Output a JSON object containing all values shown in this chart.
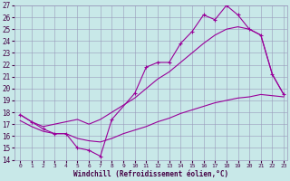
{
  "xlabel": "Windchill (Refroidissement éolien,°C)",
  "bg_color": "#c8e8e8",
  "grid_color": "#9999bb",
  "line_color": "#990099",
  "xlim_min": -0.5,
  "xlim_max": 23.3,
  "ylim_min": 14,
  "ylim_max": 27,
  "xticks": [
    0,
    1,
    2,
    3,
    4,
    5,
    6,
    7,
    8,
    9,
    10,
    11,
    12,
    13,
    14,
    15,
    16,
    17,
    18,
    19,
    20,
    21,
    22,
    23
  ],
  "yticks": [
    14,
    15,
    16,
    17,
    18,
    19,
    20,
    21,
    22,
    23,
    24,
    25,
    26,
    27
  ],
  "curve1_x": [
    0,
    1,
    2,
    3,
    4,
    5,
    6,
    7,
    8,
    10,
    11,
    12,
    13,
    14,
    15,
    16,
    17,
    18,
    19,
    20,
    21,
    22,
    23
  ],
  "curve1_y": [
    17.8,
    17.2,
    16.6,
    16.2,
    16.2,
    15.0,
    14.8,
    14.3,
    17.4,
    19.6,
    21.8,
    22.2,
    22.2,
    23.8,
    24.8,
    26.2,
    25.8,
    27.0,
    26.2,
    25.0,
    24.5,
    21.2,
    19.5
  ],
  "curve2_x": [
    0,
    1,
    2,
    3,
    4,
    5,
    6,
    7,
    8,
    10,
    11,
    12,
    13,
    14,
    15,
    16,
    17,
    18,
    19,
    20,
    21,
    22,
    23
  ],
  "curve2_y": [
    17.8,
    17.2,
    16.8,
    17.0,
    17.2,
    17.4,
    17.0,
    17.4,
    18.0,
    19.2,
    20.0,
    20.8,
    21.4,
    22.2,
    23.0,
    23.8,
    24.5,
    25.0,
    25.2,
    25.0,
    24.5,
    21.2,
    19.5
  ],
  "curve3_x": [
    0,
    1,
    2,
    3,
    4,
    5,
    6,
    7,
    8,
    9,
    10,
    11,
    12,
    13,
    14,
    15,
    16,
    17,
    18,
    19,
    20,
    21,
    22,
    23
  ],
  "curve3_y": [
    17.3,
    16.8,
    16.4,
    16.2,
    16.2,
    15.8,
    15.6,
    15.5,
    15.8,
    16.2,
    16.5,
    16.8,
    17.2,
    17.5,
    17.9,
    18.2,
    18.5,
    18.8,
    19.0,
    19.2,
    19.3,
    19.5,
    19.4,
    19.3
  ]
}
